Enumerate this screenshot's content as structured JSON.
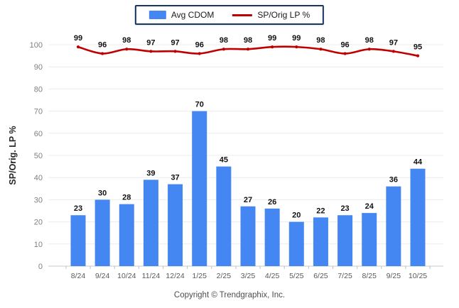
{
  "legend": {
    "items": [
      {
        "label": "Avg CDOM",
        "type": "bar",
        "color": "#4487f2"
      },
      {
        "label": "SP/Orig LP %",
        "type": "line",
        "color": "#c00000"
      }
    ],
    "border_color": "#17375e"
  },
  "chart_data": {
    "type": "bar",
    "categories": [
      "8/24",
      "9/24",
      "10/24",
      "11/24",
      "12/24",
      "1/25",
      "2/25",
      "3/25",
      "4/25",
      "5/25",
      "6/25",
      "7/25",
      "8/25",
      "9/25",
      "10/25"
    ],
    "series": [
      {
        "name": "Avg CDOM",
        "type": "bar",
        "color": "#4487f2",
        "values": [
          23,
          30,
          28,
          39,
          37,
          70,
          45,
          27,
          26,
          20,
          22,
          23,
          24,
          36,
          44
        ]
      },
      {
        "name": "SP/Orig LP %",
        "type": "line",
        "color": "#c00000",
        "values": [
          99,
          96,
          98,
          97,
          97,
          96,
          98,
          98,
          99,
          99,
          98,
          96,
          98,
          97,
          95
        ]
      }
    ],
    "title": "",
    "xlabel": "",
    "ylabel": "SP/Orig. LP %",
    "ylim": [
      0,
      100
    ],
    "ytick_step": 10,
    "grid": true,
    "legend_position": "top-center",
    "value_labels": true
  },
  "footer": {
    "text": "Copyright © Trendgraphix, Inc."
  }
}
